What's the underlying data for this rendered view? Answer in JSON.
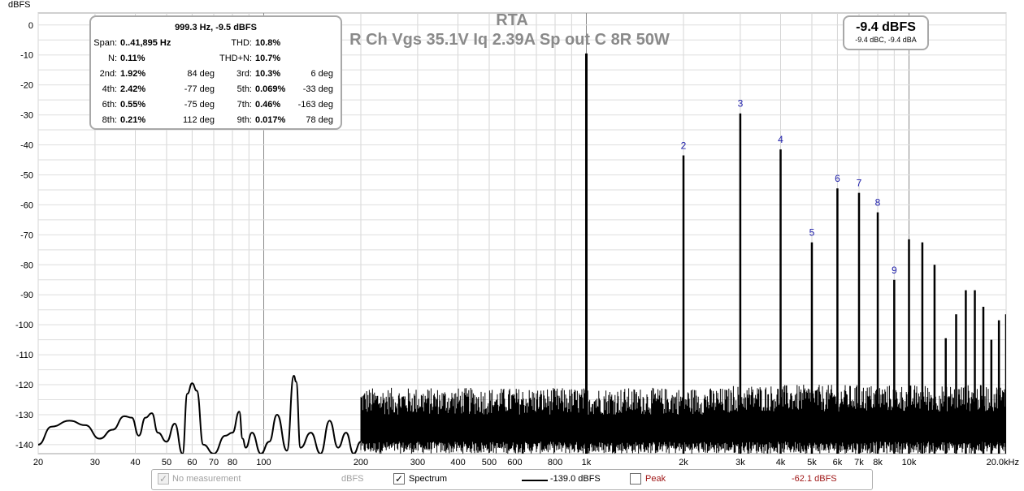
{
  "title": "RTA",
  "subtitle": "R Ch Vgs 35.1V Iq 2.39A Sp out C 8R 50W",
  "y_axis_unit": "dBFS",
  "level_box": {
    "main": "-9.4 dBFS",
    "sub": "-9.4 dBC, -9.4 dBA"
  },
  "stats": {
    "header": "999.3 Hz, -9.5 dBFS",
    "rows": [
      {
        "l1": "Span:",
        "v1": "0..41,895 Hz",
        "p1": "",
        "l2": "THD:",
        "v2": "10.8%",
        "p2": ""
      },
      {
        "l1": "N:",
        "v1": "0.11%",
        "p1": "",
        "l2": "THD+N:",
        "v2": "10.7%",
        "p2": ""
      },
      {
        "l1": "2nd:",
        "v1": "1.92%",
        "p1": "84 deg",
        "l2": "3rd:",
        "v2": "10.3%",
        "p2": "6 deg"
      },
      {
        "l1": "4th:",
        "v1": "2.42%",
        "p1": "-77 deg",
        "l2": "5th:",
        "v2": "0.069%",
        "p2": "-33 deg"
      },
      {
        "l1": "6th:",
        "v1": "0.55%",
        "p1": "-75 deg",
        "l2": "7th:",
        "v2": "0.46%",
        "p2": "-163 deg"
      },
      {
        "l1": "8th:",
        "v1": "0.21%",
        "p1": "112 deg",
        "l2": "9th:",
        "v2": "0.017%",
        "p2": "78 deg"
      }
    ]
  },
  "legend": {
    "no_measurement_label": "No measurement",
    "no_measurement_unit": "dBFS",
    "spectrum_label": "Spectrum",
    "spectrum_value": "-139.0 dBFS",
    "peak_label": "Peak",
    "peak_value": "-62.1 dBFS",
    "peak_color": "#a01818"
  },
  "chart_data": {
    "type": "line",
    "x_scale": "log",
    "xlim": [
      20,
      20000
    ],
    "ylim": [
      -143,
      4
    ],
    "x_ticks": [
      {
        "v": 20,
        "label": "20"
      },
      {
        "v": 30,
        "label": "30"
      },
      {
        "v": 40,
        "label": "40"
      },
      {
        "v": 50,
        "label": "50"
      },
      {
        "v": 60,
        "label": "60"
      },
      {
        "v": 70,
        "label": "70"
      },
      {
        "v": 80,
        "label": "80"
      },
      {
        "v": 100,
        "label": "100"
      },
      {
        "v": 200,
        "label": "200"
      },
      {
        "v": 300,
        "label": "300"
      },
      {
        "v": 400,
        "label": "400"
      },
      {
        "v": 500,
        "label": "500"
      },
      {
        "v": 600,
        "label": "600"
      },
      {
        "v": 800,
        "label": "800"
      },
      {
        "v": 1000,
        "label": "1k"
      },
      {
        "v": 2000,
        "label": "2k"
      },
      {
        "v": 3000,
        "label": "3k"
      },
      {
        "v": 4000,
        "label": "4k"
      },
      {
        "v": 5000,
        "label": "5k"
      },
      {
        "v": 6000,
        "label": "6k"
      },
      {
        "v": 7000,
        "label": "7k"
      },
      {
        "v": 8000,
        "label": "8k"
      },
      {
        "v": 10000,
        "label": "10k"
      },
      {
        "v": 20000,
        "label": "20.0kHz"
      }
    ],
    "y_ticks": [
      0,
      -10,
      -20,
      -30,
      -40,
      -50,
      -60,
      -70,
      -80,
      -90,
      -100,
      -110,
      -120,
      -130,
      -140
    ],
    "grid": true,
    "harmonic_markers": [
      {
        "label": "2",
        "x": 2000,
        "y": -43.5
      },
      {
        "label": "3",
        "x": 3000,
        "y": -29.5
      },
      {
        "label": "4",
        "x": 4000,
        "y": -41.5
      },
      {
        "label": "5",
        "x": 5000,
        "y": -72.5
      },
      {
        "label": "6",
        "x": 6000,
        "y": -54.5
      },
      {
        "label": "7",
        "x": 7000,
        "y": -56
      },
      {
        "label": "8",
        "x": 8000,
        "y": -62.5
      },
      {
        "label": "9",
        "x": 9000,
        "y": -85
      }
    ],
    "peaks": [
      {
        "x": 1000,
        "y": -9.5
      },
      {
        "x": 2000,
        "y": -43.5
      },
      {
        "x": 3000,
        "y": -29.5
      },
      {
        "x": 4000,
        "y": -41.5
      },
      {
        "x": 5000,
        "y": -72.5
      },
      {
        "x": 6000,
        "y": -54.5
      },
      {
        "x": 7000,
        "y": -56
      },
      {
        "x": 8000,
        "y": -62.5
      },
      {
        "x": 9000,
        "y": -85
      },
      {
        "x": 10000,
        "y": -71.5
      },
      {
        "x": 11000,
        "y": -72.5
      },
      {
        "x": 12000,
        "y": -80
      },
      {
        "x": 13000,
        "y": -104.5
      },
      {
        "x": 14000,
        "y": -96.5
      },
      {
        "x": 15000,
        "y": -88.5
      },
      {
        "x": 16000,
        "y": -88.5
      },
      {
        "x": 17000,
        "y": -94
      },
      {
        "x": 18000,
        "y": -105
      },
      {
        "x": 19000,
        "y": -98.5
      },
      {
        "x": 20000,
        "y": -96.5
      }
    ],
    "low_freq_curve": [
      [
        20,
        -140
      ],
      [
        22,
        -134
      ],
      [
        25,
        -132
      ],
      [
        28,
        -133.5
      ],
      [
        31,
        -138
      ],
      [
        34,
        -135
      ],
      [
        37,
        -130.5
      ],
      [
        39,
        -131
      ],
      [
        41,
        -137
      ],
      [
        43,
        -131
      ],
      [
        45,
        -129.5
      ],
      [
        47,
        -136
      ],
      [
        50,
        -139
      ],
      [
        53,
        -133
      ],
      [
        56,
        -143
      ],
      [
        58,
        -123
      ],
      [
        60,
        -119.5
      ],
      [
        62,
        -122
      ],
      [
        65,
        -140
      ],
      [
        70,
        -143
      ],
      [
        76,
        -137
      ],
      [
        80,
        -136
      ],
      [
        84,
        -129
      ],
      [
        86,
        -138
      ],
      [
        88,
        -141
      ],
      [
        92,
        -136
      ],
      [
        98,
        -143
      ],
      [
        104,
        -139
      ],
      [
        110,
        -130
      ],
      [
        118,
        -142
      ],
      [
        124,
        -117
      ],
      [
        126,
        -119
      ],
      [
        130,
        -141
      ],
      [
        140,
        -136
      ],
      [
        150,
        -143
      ],
      [
        160,
        -132
      ],
      [
        170,
        -141
      ],
      [
        180,
        -136
      ],
      [
        190,
        -143
      ],
      [
        200,
        -139
      ]
    ],
    "noise_floor_range": [
      -143,
      -126
    ]
  }
}
